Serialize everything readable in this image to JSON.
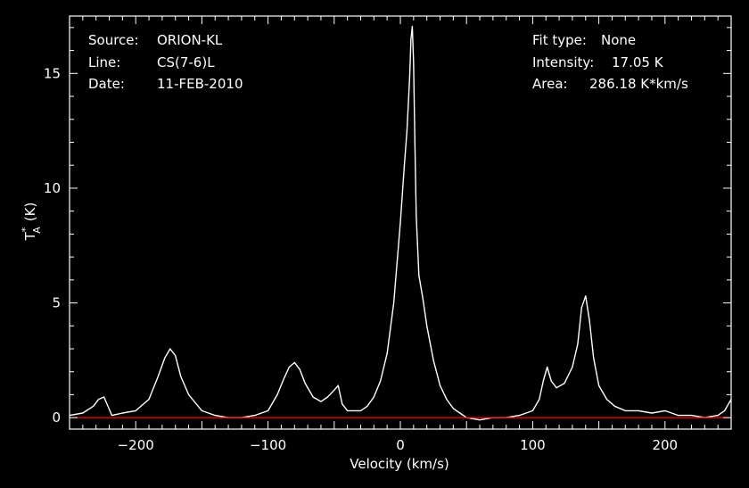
{
  "header": {
    "source_label": "Source:",
    "source_value": "ORION-KL",
    "line_label": "Line:",
    "line_value": "CS(7-6)L",
    "date_label": "Date:",
    "date_value": "11-FEB-2010",
    "fit_label": "Fit type:",
    "fit_value": "None",
    "intensity_label": "Intensity:",
    "intensity_value": "17.05 K",
    "area_label": "Area:",
    "area_value": "286.18 K*km/s"
  },
  "colors": {
    "background": "#000000",
    "axes": "#ffffff",
    "spectrum": "#ffffff",
    "baseline": "#ff0000"
  },
  "chart_data": {
    "type": "line",
    "xlabel": "Velocity (km/s)",
    "ylabel": "T",
    "ylabel_superscript": "*",
    "ylabel_subscript": "A",
    "ylabel_unit": "(K)",
    "xlim": [
      -250,
      250
    ],
    "ylim": [
      -0.5,
      17.5
    ],
    "x_ticks": [
      -200,
      -100,
      0,
      100,
      200
    ],
    "x_tick_labels": [
      "−200",
      "−100",
      "0",
      "100",
      "200"
    ],
    "y_ticks": [
      0,
      5,
      10,
      15
    ],
    "y_tick_labels": [
      "0",
      "5",
      "10",
      "15"
    ],
    "grid": false,
    "baseline_value": 0,
    "series": [
      {
        "x": [
          -250,
          -240,
          -232,
          -228,
          -224,
          -218,
          -210,
          -200,
          -190,
          -183,
          -178,
          -174,
          -170,
          -166,
          -160,
          -150,
          -140,
          -130,
          -120,
          -110,
          -100,
          -93,
          -88,
          -84,
          -80,
          -76,
          -72,
          -66,
          -60,
          -55,
          -50,
          -47,
          -44,
          -40,
          -35,
          -30,
          -25,
          -20,
          -15,
          -10,
          -5,
          0,
          3,
          5,
          7,
          8,
          9,
          10,
          11,
          12,
          14,
          17,
          20,
          25,
          30,
          35,
          40,
          45,
          50,
          60,
          70,
          80,
          90,
          100,
          105,
          108,
          111,
          114,
          118,
          124,
          130,
          134,
          137,
          140,
          143,
          146,
          150,
          156,
          162,
          170,
          180,
          190,
          200,
          210,
          220,
          230,
          240,
          245,
          250
        ],
        "y": [
          0.1,
          0.2,
          0.5,
          0.8,
          0.9,
          0.1,
          0.2,
          0.3,
          0.8,
          1.8,
          2.6,
          3.0,
          2.7,
          1.8,
          1.0,
          0.3,
          0.1,
          0.0,
          0.0,
          0.1,
          0.3,
          1.0,
          1.7,
          2.2,
          2.4,
          2.1,
          1.5,
          0.9,
          0.7,
          0.9,
          1.2,
          1.4,
          0.6,
          0.3,
          0.3,
          0.3,
          0.5,
          0.9,
          1.6,
          2.8,
          5.0,
          8.5,
          11.0,
          12.5,
          14.8,
          16.5,
          17.05,
          15.5,
          12.0,
          8.8,
          6.2,
          5.2,
          4.0,
          2.5,
          1.4,
          0.8,
          0.4,
          0.2,
          0.0,
          -0.1,
          0.0,
          0.0,
          0.1,
          0.3,
          0.8,
          1.6,
          2.2,
          1.6,
          1.3,
          1.5,
          2.2,
          3.2,
          4.8,
          5.3,
          4.2,
          2.6,
          1.4,
          0.8,
          0.5,
          0.3,
          0.3,
          0.2,
          0.3,
          0.1,
          0.1,
          0.0,
          0.1,
          0.3,
          0.8
        ]
      }
    ]
  }
}
